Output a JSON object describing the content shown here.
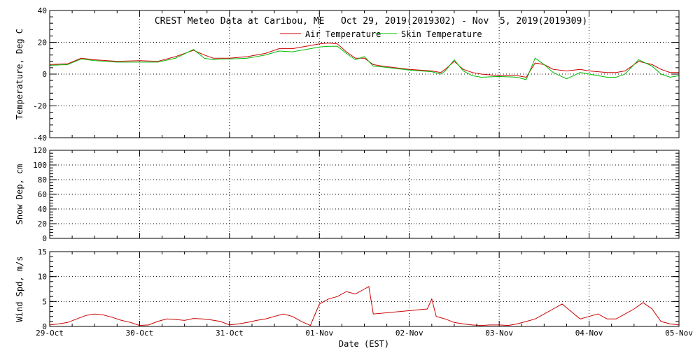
{
  "title": "CREST Meteo Data at Caribou, ME   Oct 29, 2019(2019302) - Nov  5, 2019(2019309)",
  "xlabel": "Date (EST)",
  "x_ticks": [
    "29-Oct",
    "30-Oct",
    "31-Oct",
    "01-Nov",
    "02-Nov",
    "03-Nov",
    "04-Nov",
    "05-Nov"
  ],
  "x_range_days": [
    0,
    7
  ],
  "colors": {
    "air": "#cc0000",
    "skin": "#00bb00",
    "wind": "#cc0000",
    "axis": "#000000",
    "grid": "#000000"
  },
  "chart_data": [
    {
      "type": "line",
      "ylabel": "Temperature, Deg C",
      "ylim": [
        -40,
        40
      ],
      "yticks": [
        -40,
        -20,
        0,
        20,
        40
      ],
      "grid": true,
      "legend": "top-center",
      "series": [
        {
          "name": "Air Temperature",
          "color": "#cc0000",
          "x": [
            0,
            0.2,
            0.35,
            0.5,
            0.75,
            1.0,
            1.2,
            1.4,
            1.6,
            1.72,
            1.82,
            1.9,
            2.0,
            2.2,
            2.4,
            2.55,
            2.7,
            2.9,
            3.0,
            3.1,
            3.2,
            3.3,
            3.4,
            3.5,
            3.6,
            3.7,
            4.0,
            4.25,
            4.35,
            4.4,
            4.5,
            4.6,
            4.7,
            4.8,
            5.0,
            5.2,
            5.3,
            5.4,
            5.5,
            5.6,
            5.75,
            5.9,
            6.0,
            6.2,
            6.3,
            6.4,
            6.55,
            6.7,
            6.8,
            6.9,
            7.0
          ],
          "values": [
            6,
            6.5,
            10,
            9,
            8,
            8.5,
            8,
            11,
            15,
            12,
            10,
            10,
            10,
            11,
            13,
            16,
            16,
            18,
            19,
            19.5,
            19,
            14,
            10,
            10,
            6,
            5,
            3,
            2,
            1,
            3,
            8,
            3,
            1,
            0,
            -1,
            -1,
            -2,
            7,
            6,
            3,
            2,
            3,
            2,
            1,
            1,
            2,
            8,
            6,
            3,
            1,
            1
          ]
        },
        {
          "name": "Skin Temperature",
          "color": "#00bb00",
          "x": [
            0,
            0.2,
            0.35,
            0.5,
            0.75,
            1.0,
            1.2,
            1.4,
            1.6,
            1.72,
            1.82,
            1.9,
            2.0,
            2.2,
            2.4,
            2.55,
            2.7,
            2.9,
            3.0,
            3.1,
            3.2,
            3.3,
            3.4,
            3.5,
            3.6,
            3.7,
            4.0,
            4.25,
            4.35,
            4.4,
            4.5,
            4.6,
            4.7,
            4.8,
            5.0,
            5.2,
            5.3,
            5.4,
            5.5,
            5.6,
            5.75,
            5.9,
            6.0,
            6.2,
            6.3,
            6.4,
            6.55,
            6.7,
            6.8,
            6.9,
            7.0
          ],
          "values": [
            5.5,
            6,
            9.5,
            8.5,
            7.5,
            7.5,
            7.5,
            10,
            15.5,
            10,
            9,
            9.5,
            9.5,
            10,
            12,
            14.5,
            14,
            16,
            17,
            17.5,
            17.5,
            13,
            9,
            11,
            5,
            4.5,
            2.5,
            1.5,
            0,
            2,
            9,
            2,
            -1,
            -2,
            -1.5,
            -2,
            -3.5,
            10,
            6,
            1,
            -3,
            1,
            0,
            -2,
            -2,
            0,
            9,
            5,
            0,
            -2,
            -1
          ]
        }
      ]
    },
    {
      "type": "line",
      "ylabel": "Snow Dep, cm",
      "ylim": [
        0,
        120
      ],
      "yticks": [
        0,
        20,
        40,
        60,
        80,
        100,
        120
      ],
      "grid": true,
      "series": []
    },
    {
      "type": "line",
      "ylabel": "Wind Spd, m/s",
      "ylim": [
        0,
        15
      ],
      "yticks": [
        0,
        5,
        10,
        15
      ],
      "grid": true,
      "series": [
        {
          "color": "#cc0000",
          "x": [
            0,
            0.1,
            0.2,
            0.3,
            0.4,
            0.5,
            0.6,
            0.7,
            0.8,
            0.9,
            1.0,
            1.1,
            1.2,
            1.3,
            1.4,
            1.5,
            1.6,
            1.7,
            1.8,
            1.9,
            2.0,
            2.1,
            2.2,
            2.3,
            2.4,
            2.5,
            2.6,
            2.7,
            2.8,
            2.9,
            3.0,
            3.1,
            3.2,
            3.3,
            3.4,
            3.5,
            3.55,
            3.6,
            4.2,
            4.25,
            4.3,
            4.4,
            4.5,
            4.6,
            4.7,
            4.8,
            4.9,
            5.0,
            5.1,
            5.2,
            5.3,
            5.4,
            5.5,
            5.6,
            5.7,
            5.8,
            5.9,
            6.0,
            6.1,
            6.2,
            6.3,
            6.4,
            6.5,
            6.6,
            6.7,
            6.8,
            6.9,
            7.0
          ],
          "values": [
            0.3,
            0.5,
            0.8,
            1.5,
            2.2,
            2.5,
            2.3,
            1.8,
            1.2,
            0.8,
            0.2,
            0.3,
            1.0,
            1.5,
            1.4,
            1.2,
            1.6,
            1.5,
            1.3,
            1.0,
            0.3,
            0.5,
            0.8,
            1.2,
            1.5,
            2.0,
            2.5,
            2.0,
            1.0,
            0.2,
            4.5,
            5.5,
            6.0,
            7.0,
            6.5,
            7.5,
            8.0,
            2.5,
            3.5,
            5.5,
            2.0,
            1.5,
            0.8,
            0.5,
            0.3,
            0.2,
            0.3,
            0.3,
            0.2,
            0.5,
            1.0,
            1.5,
            2.5,
            3.5,
            4.5,
            3.0,
            1.5,
            2.0,
            2.5,
            1.5,
            1.5,
            2.5,
            3.5,
            4.8,
            3.5,
            1.0,
            0.5,
            0.3
          ]
        }
      ]
    }
  ]
}
